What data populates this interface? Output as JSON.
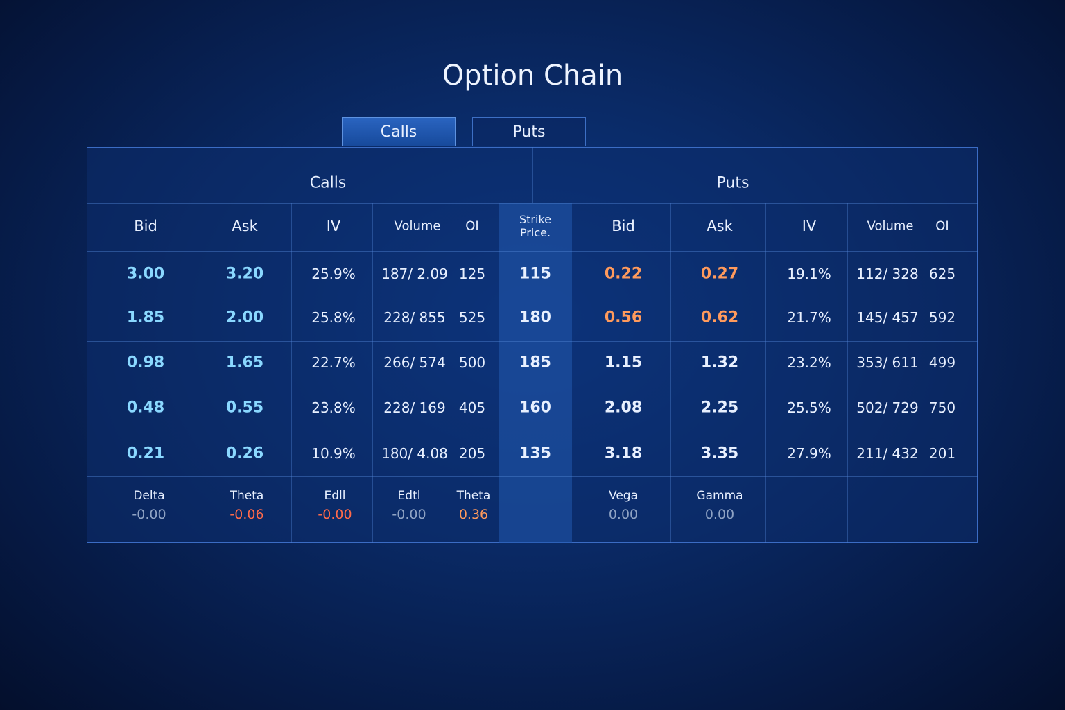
{
  "title": "Option Chain",
  "tabs": [
    "Calls",
    "Puts"
  ],
  "table": {
    "groups": [
      "Calls",
      "Puts"
    ],
    "columns": [
      "Bid",
      "Ask",
      "IV",
      "Volume",
      "OI",
      "Strike Price.",
      "Bid",
      "Ask",
      "IV",
      "Volume",
      "OI"
    ],
    "rows": [
      [
        "3.00",
        "3.20",
        "25.9%",
        "187/ 2.09",
        "125",
        "115",
        "0.22",
        "0.27",
        "19.1%",
        "112/ 328",
        "625"
      ],
      [
        "1.85",
        "2.00",
        "25.8%",
        "228/ 855",
        "525",
        "180",
        "0.56",
        "0.62",
        "21.7%",
        "145/ 457",
        "592"
      ],
      [
        "0.98",
        "1.65",
        "22.7%",
        "266/ 574",
        "500",
        "185",
        "1.15",
        "1.32",
        "23.2%",
        "353/ 611",
        "499"
      ],
      [
        "0.48",
        "0.55",
        "23.8%",
        "228/ 169",
        "405",
        "160",
        "2.08",
        "2.25",
        "25.5%",
        "502/ 729",
        "750"
      ],
      [
        "0.21",
        "0.26",
        "10.9%",
        "180/ 4.08",
        "205",
        "135",
        "3.18",
        "3.35",
        "27.9%",
        "211/ 432",
        "201"
      ]
    ],
    "greeks": [
      {
        "label": "Delta",
        "value": "-0.00"
      },
      {
        "label": "Theta",
        "value": "-0.06"
      },
      {
        "label": "Edll",
        "value": "-0.00"
      },
      {
        "label": "Edtl",
        "value": "-0.00"
      },
      {
        "label": "Theta",
        "value": "0.36"
      },
      {
        "label": "Vega",
        "value": "0.00"
      },
      {
        "label": "Gamma",
        "value": "0.00"
      }
    ]
  }
}
